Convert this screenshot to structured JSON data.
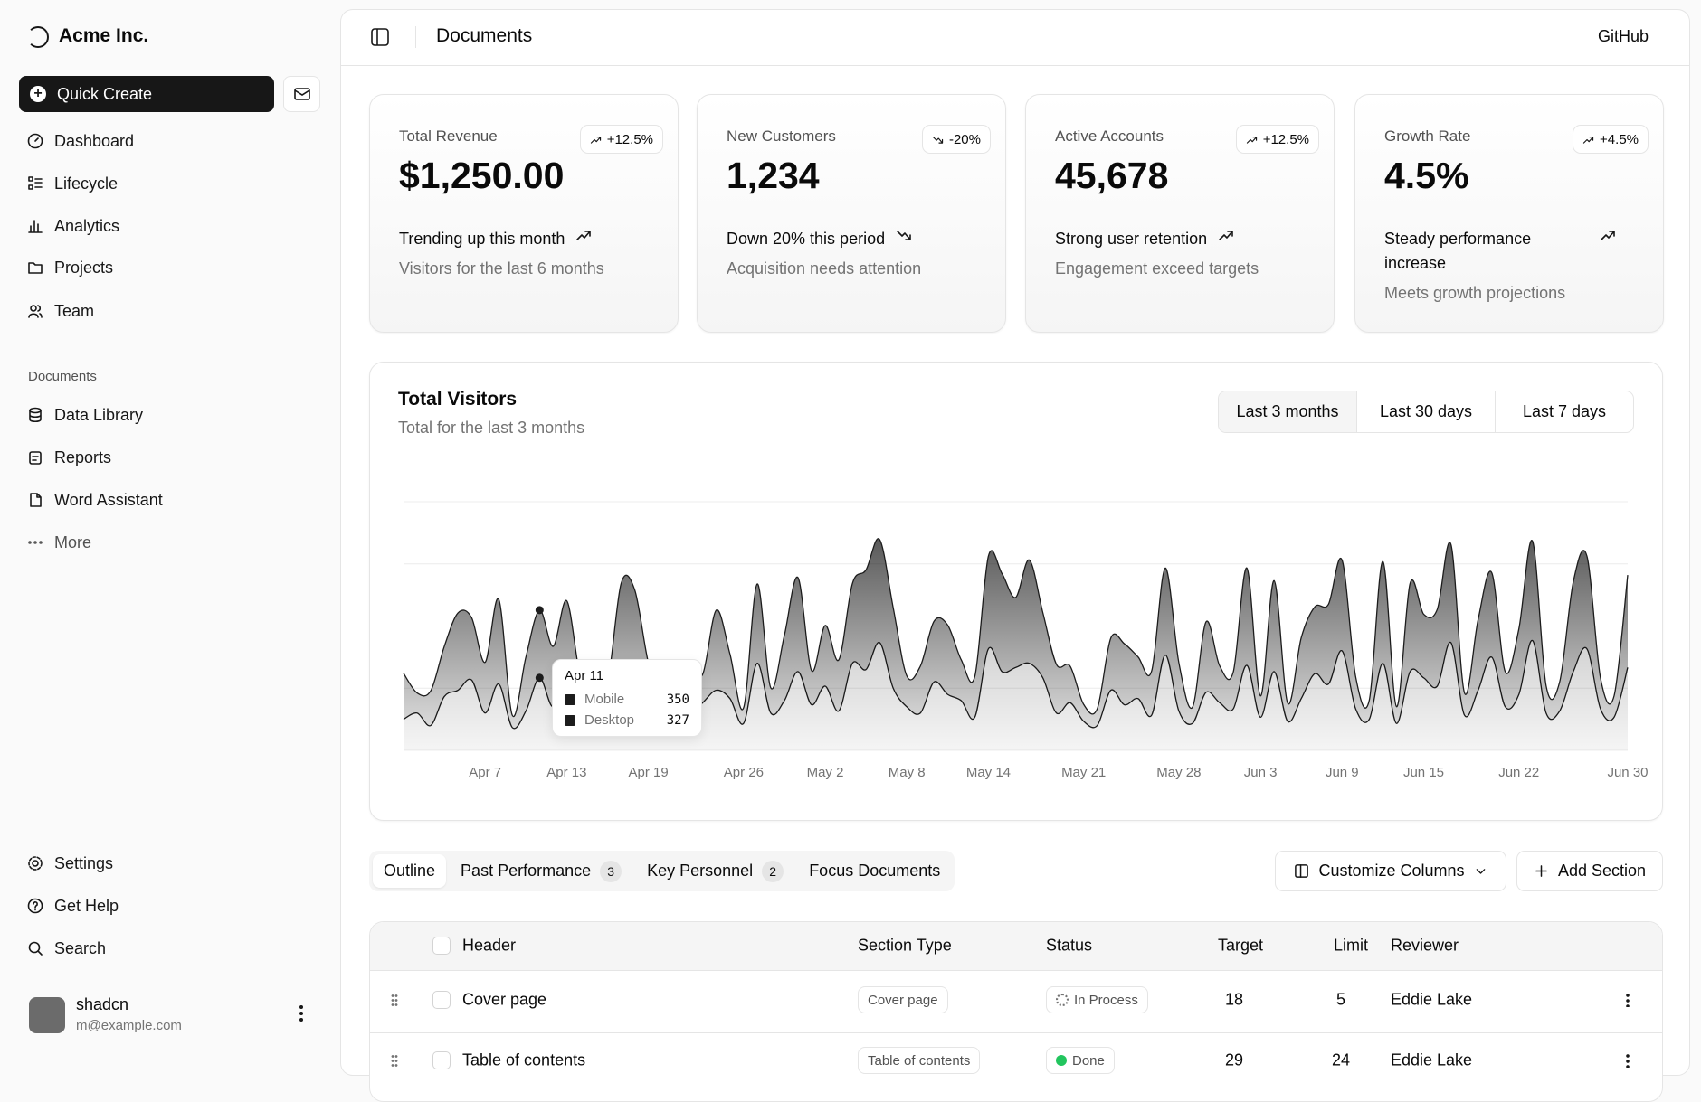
{
  "sidebar": {
    "brand": "Acme Inc.",
    "quick_create": "Quick Create",
    "nav": [
      "Dashboard",
      "Lifecycle",
      "Analytics",
      "Projects",
      "Team"
    ],
    "documents_heading": "Documents",
    "documents": [
      "Data Library",
      "Reports",
      "Word Assistant",
      "More"
    ],
    "footer_nav": [
      "Settings",
      "Get Help",
      "Search"
    ],
    "user": {
      "name": "shadcn",
      "email": "m@example.com"
    }
  },
  "header": {
    "title": "Documents",
    "link": "GitHub"
  },
  "cards": [
    {
      "label": "Total Revenue",
      "value": "$1,250.00",
      "badge": "+12.5%",
      "trend": "Trending up this month",
      "note": "Visitors for the last 6 months"
    },
    {
      "label": "New Customers",
      "value": "1,234",
      "badge": "-20%",
      "trend": "Down 20% this period",
      "note": "Acquisition needs attention"
    },
    {
      "label": "Active Accounts",
      "value": "45,678",
      "badge": "+12.5%",
      "trend": "Strong user retention",
      "note": "Engagement exceed targets"
    },
    {
      "label": "Growth Rate",
      "value": "4.5%",
      "badge": "+4.5%",
      "trend": "Steady performance increase",
      "note": "Meets growth projections"
    }
  ],
  "chart_data": {
    "type": "area",
    "title": "Total Visitors",
    "subtitle": "Total for the last 3 months",
    "ranges": [
      "Last 3 months",
      "Last 30 days",
      "Last 7 days"
    ],
    "categories": [
      null,
      null,
      null,
      null,
      null,
      null,
      "Apr 7",
      null,
      null,
      null,
      null,
      null,
      "Apr 13",
      null,
      null,
      null,
      null,
      null,
      "Apr 19",
      null,
      null,
      null,
      null,
      null,
      null,
      "Apr 26",
      null,
      null,
      null,
      null,
      null,
      "May 2",
      null,
      null,
      null,
      null,
      null,
      "May 8",
      null,
      null,
      null,
      null,
      null,
      "May 14",
      null,
      null,
      null,
      null,
      null,
      null,
      "May 21",
      null,
      null,
      null,
      null,
      null,
      null,
      "May 28",
      null,
      null,
      null,
      null,
      null,
      "Jun 3",
      null,
      null,
      null,
      null,
      null,
      "Jun 9",
      null,
      null,
      null,
      null,
      null,
      "Jun 15",
      null,
      null,
      null,
      null,
      null,
      null,
      "Jun 22",
      null,
      null,
      null,
      null,
      null,
      null,
      null,
      "Jun 30"
    ],
    "series": [
      {
        "name": "Mobile",
        "color": "#1c1c1c",
        "values": [
          150,
          180,
          120,
          260,
          290,
          340,
          180,
          320,
          110,
          190,
          350,
          210,
          380,
          220,
          170,
          190,
          360,
          410,
          180,
          150,
          200,
          170,
          230,
          290,
          250,
          130,
          420,
          180,
          240,
          380,
          220,
          310,
          190,
          420,
          390,
          520,
          300,
          210,
          180,
          330,
          270,
          240,
          160,
          490,
          380,
          400,
          420,
          350,
          180,
          230,
          140,
          120,
          290,
          220,
          250,
          170,
          460,
          190,
          130,
          280,
          230,
          200,
          410,
          160,
          380,
          140,
          250,
          370,
          320,
          480,
          200,
          150,
          420,
          130,
          380,
          350,
          310,
          520,
          170,
          290,
          450,
          210,
          270,
          530,
          180,
          190,
          380,
          490,
          200,
          160,
          400
        ]
      },
      {
        "name": "Desktop",
        "color": "#1c1c1c",
        "values": [
          222,
          97,
          167,
          242,
          373,
          301,
          245,
          409,
          59,
          261,
          327,
          292,
          342,
          137,
          120,
          138,
          446,
          364,
          243,
          89,
          137,
          224,
          138,
          387,
          215,
          75,
          383,
          122,
          315,
          454,
          165,
          293,
          247,
          385,
          481,
          498,
          388,
          149,
          227,
          293,
          335,
          197,
          197,
          448,
          473,
          338,
          499,
          315,
          235,
          177,
          82,
          81,
          252,
          294,
          201,
          213,
          420,
          233,
          78,
          340,
          178,
          178,
          470,
          103,
          439,
          88,
          294,
          323,
          385,
          438,
          155,
          92,
          492,
          81,
          426,
          307,
          371,
          475,
          107,
          341,
          408,
          169,
          317,
          480,
          132,
          141,
          434,
          448,
          149,
          103,
          446
        ]
      }
    ],
    "stacked": true,
    "ylim": [
      0,
      1200
    ],
    "yticks": [
      0,
      300,
      600,
      900,
      1200
    ],
    "grid": true,
    "tooltip": {
      "title": "Apr 11"
    }
  },
  "tabs": [
    {
      "label": "Outline"
    },
    {
      "label": "Past Performance",
      "count": 3
    },
    {
      "label": "Key Personnel",
      "count": 2
    },
    {
      "label": "Focus Documents"
    }
  ],
  "actions": [
    "Customize Columns",
    "Add Section"
  ],
  "table": {
    "columns": [
      "Header",
      "Section Type",
      "Status",
      "Target",
      "Limit",
      "Reviewer"
    ],
    "rows": [
      [
        "Cover page",
        "Cover page",
        "In Process",
        18,
        5,
        "Eddie Lake"
      ],
      [
        "Table of contents",
        "Table of contents",
        "Done",
        29,
        24,
        "Eddie Lake"
      ]
    ]
  }
}
